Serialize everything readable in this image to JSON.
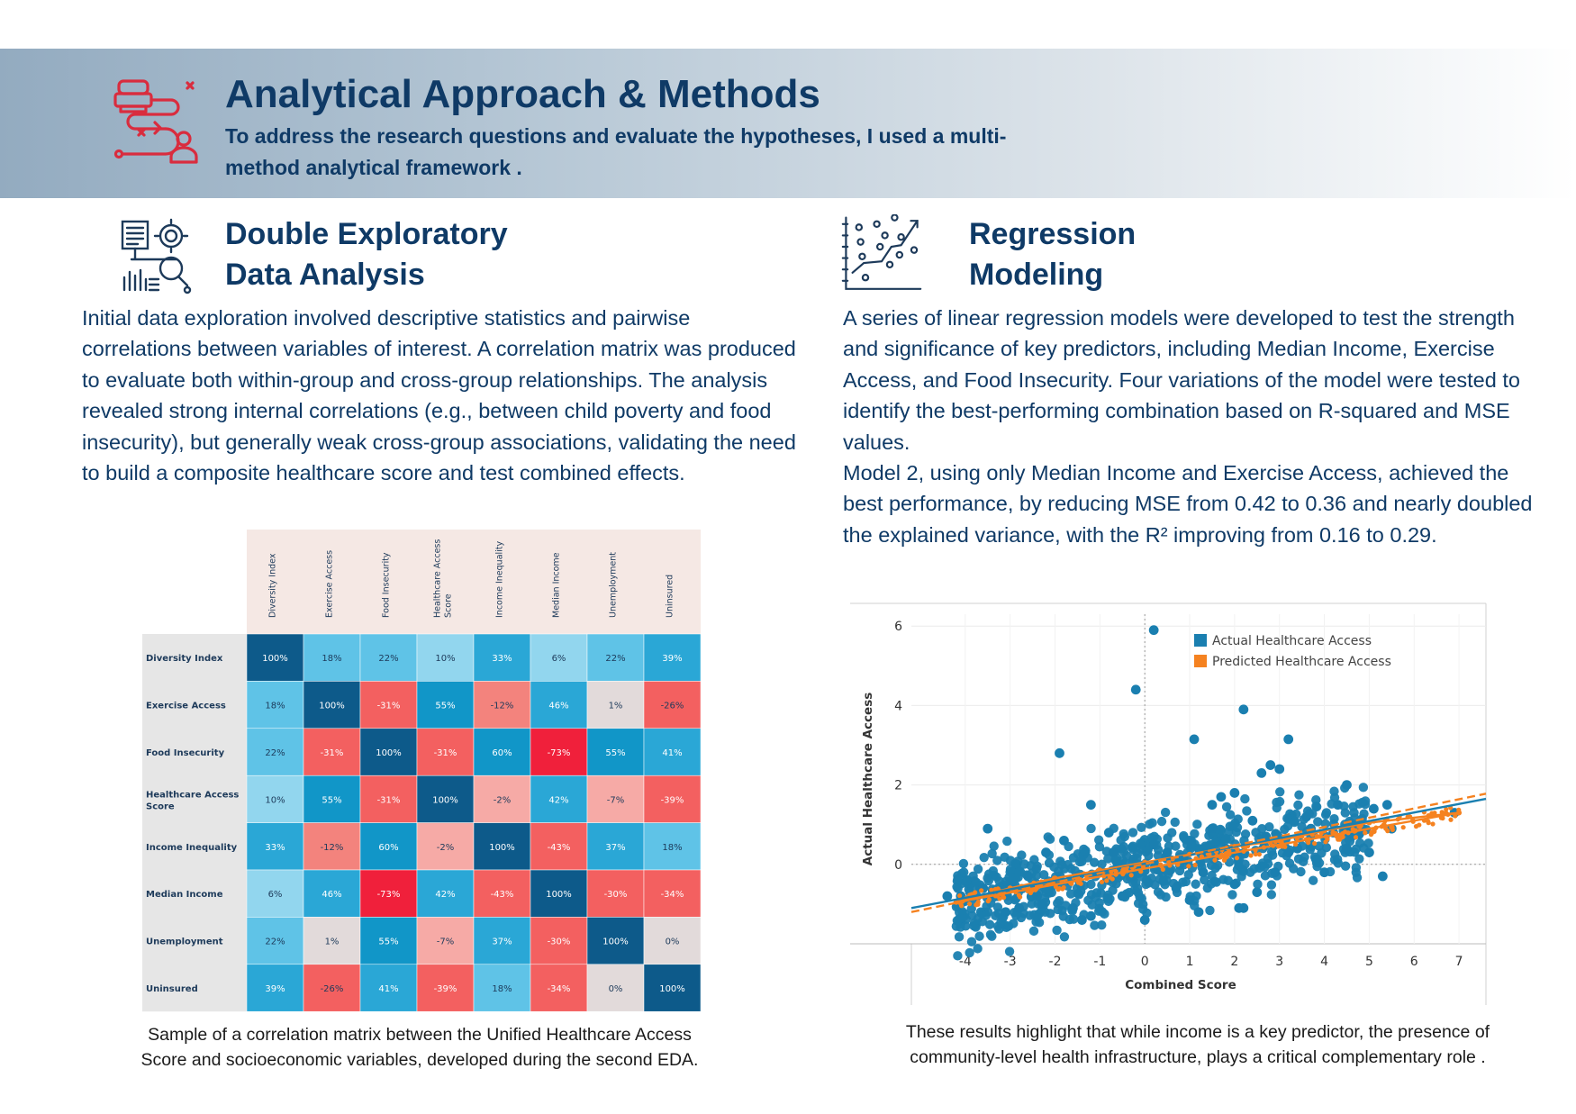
{
  "header": {
    "title": "Analytical Approach & Methods",
    "subtitle": "To address the research questions and evaluate the hypotheses, I used a multi-method analytical framework .",
    "icon": "workflow-icon"
  },
  "left_section": {
    "title_line1": "Double Exploratory",
    "title_line2": "Data Analysis",
    "icon": "data-analysis-icon",
    "body": "Initial data exploration involved descriptive statistics and pairwise correlations between variables of interest. A correlation matrix was produced to evaluate both within-group and cross-group relationships. The analysis revealed strong internal correlations (e.g., between child poverty and food insecurity), but generally weak cross-group associations, validating the need to build a composite healthcare score and test combined effects.",
    "caption_line1": "Sample of a correlation matrix between the Unified Healthcare Access",
    "caption_line2": "Score and socioeconomic variables, developed during the second EDA."
  },
  "right_section": {
    "title_line1": "Regression",
    "title_line2": "Modeling",
    "icon": "scatter-plot-icon",
    "body1": "A series of linear regression models were developed to test the strength and significance of key predictors, including Median Income, Exercise Access, and Food Insecurity. Four variations of the model were tested to identify the best-performing combination based on R-squared and MSE values.",
    "body2": "Model 2, using only Median Income and Exercise Access, achieved the best performance, by reducing MSE from 0.42 to 0.36 and nearly doubled the explained variance, with the R² improving from 0.16 to 0.29.",
    "caption_line1": "These results highlight that while income is a key predictor, the presence of",
    "caption_line2": "community-level health infrastructure, plays a critical complementary role ."
  },
  "chart_data": [
    {
      "type": "heatmap",
      "labels": [
        "Diversity Index",
        "Exercise Access",
        "Food Insecurity",
        "Healthcare Access Score",
        "Income Inequality",
        "Median Income",
        "Unemployment",
        "Uninsured"
      ],
      "col_labels": [
        [
          "Diversity Index"
        ],
        [
          "Exercise Access"
        ],
        [
          "Food Insecurity"
        ],
        [
          "Healthcare Access",
          "Score"
        ],
        [
          "Income Inequality"
        ],
        [
          "Median Income"
        ],
        [
          "Unemployment"
        ],
        [
          "Uninsured"
        ]
      ],
      "row_labels": [
        [
          "Diversity Index"
        ],
        [
          "Exercise Access"
        ],
        [
          "Food Insecurity"
        ],
        [
          "Healthcare Access",
          "Score"
        ],
        [
          "Income Inequality"
        ],
        [
          "Median Income"
        ],
        [
          "Unemployment"
        ],
        [
          "Uninsured"
        ]
      ],
      "values": [
        [
          100,
          18,
          22,
          10,
          33,
          6,
          22,
          39
        ],
        [
          18,
          100,
          -31,
          55,
          -12,
          46,
          1,
          -26
        ],
        [
          22,
          -31,
          100,
          -31,
          60,
          -73,
          55,
          41
        ],
        [
          10,
          55,
          -31,
          100,
          -2,
          42,
          -7,
          -39
        ],
        [
          33,
          -12,
          60,
          -2,
          100,
          -43,
          37,
          18
        ],
        [
          6,
          46,
          -73,
          42,
          -43,
          100,
          -30,
          -34
        ],
        [
          22,
          1,
          55,
          -7,
          37,
          -30,
          100,
          0
        ],
        [
          39,
          -26,
          41,
          -39,
          18,
          -34,
          0,
          100
        ]
      ],
      "unit": "%"
    },
    {
      "type": "scatter",
      "xlabel": "Combined Score",
      "ylabel": "Actual Healthcare Access",
      "xticks": [
        -4,
        -3,
        -2,
        -1,
        0,
        1,
        2,
        3,
        4,
        5,
        6,
        7
      ],
      "yticks": [
        0,
        2,
        4,
        6
      ],
      "xlim": [
        -5.2,
        7.6
      ],
      "ylim": [
        -2,
        6.3
      ],
      "legend_position": "top-center",
      "colors": {
        "actual": "#1a7fb0",
        "predicted": "#f58220"
      },
      "series": [
        {
          "name": "Actual Healthcare Access",
          "points": [
            [
              0.2,
              5.9
            ],
            [
              -0.2,
              4.4
            ],
            [
              2.2,
              3.9
            ],
            [
              1.1,
              3.15
            ],
            [
              3.2,
              3.15
            ],
            [
              -1.9,
              2.8
            ],
            [
              2.8,
              2.5
            ],
            [
              2.6,
              2.3
            ],
            [
              3.0,
              2.4
            ],
            [
              4.5,
              2.0
            ],
            [
              2.0,
              1.8
            ],
            [
              -1.2,
              1.5
            ],
            [
              1.5,
              1.5
            ],
            [
              1.7,
              1.7
            ],
            [
              4.3,
              1.5
            ],
            [
              -3.5,
              0.9
            ],
            [
              -1.8,
              0.6
            ],
            [
              -0.8,
              0.8
            ],
            [
              -2.2,
              0.3
            ],
            [
              0.5,
              0.3
            ],
            [
              1.0,
              0.6
            ],
            [
              1.5,
              0.9
            ],
            [
              2.4,
              1.1
            ],
            [
              3.6,
              1.2
            ],
            [
              4.2,
              0.8
            ],
            [
              4.8,
              1.1
            ],
            [
              5.1,
              1.4
            ],
            [
              5.4,
              1.5
            ],
            [
              5.5,
              0.9
            ],
            [
              4.5,
              0.4
            ],
            [
              5.0,
              0.3
            ],
            [
              5.3,
              -0.3
            ],
            [
              4.0,
              -0.2
            ],
            [
              3.2,
              0.3
            ],
            [
              2.0,
              -0.5
            ],
            [
              2.2,
              -1.1
            ],
            [
              2.1,
              -1.1
            ],
            [
              1.2,
              -1.2
            ],
            [
              0,
              -1.4
            ],
            [
              -1.4,
              -1.4
            ],
            [
              -1.2,
              -1.3
            ],
            [
              -1.6,
              -1.1
            ],
            [
              -2.3,
              -1.0
            ],
            [
              -2.8,
              -1.1
            ],
            [
              -3.1,
              -1.2
            ],
            [
              -3.6,
              -0.6
            ],
            [
              -4.1,
              -0.8
            ],
            [
              -4.4,
              -0.8
            ],
            [
              -2.6,
              -0.3
            ],
            [
              -0.5,
              -0.8
            ],
            [
              0.7,
              -0.6
            ],
            [
              1.3,
              -0.2
            ],
            [
              -1.0,
              -0.2
            ],
            [
              0.2,
              0.5
            ],
            [
              6.9,
              1.3
            ],
            [
              3.7,
              0.9
            ],
            [
              2.9,
              -0.2
            ],
            [
              -0.3,
              -0.3
            ],
            [
              -3.0,
              -0.6
            ],
            [
              -2.0,
              -0.5
            ],
            [
              -1.5,
              -0.3
            ],
            [
              0.6,
              0.1
            ],
            [
              1.8,
              0.4
            ],
            [
              2.7,
              0.7
            ],
            [
              3.4,
              0.4
            ],
            [
              -0.7,
              0.3
            ],
            [
              -2.4,
              -0.8
            ],
            [
              1.0,
              -0.9
            ],
            [
              2.5,
              -0.7
            ],
            [
              4.6,
              0.8
            ]
          ]
        },
        {
          "name": "Predicted Healthcare Access",
          "points": [
            [
              -4.2,
              -0.95
            ],
            [
              -3,
              -0.6
            ],
            [
              -2,
              -0.35
            ],
            [
              -1,
              -0.15
            ],
            [
              0,
              0.05
            ],
            [
              1,
              0.25
            ],
            [
              2,
              0.45
            ],
            [
              3,
              0.6
            ],
            [
              4,
              0.85
            ],
            [
              5,
              1.05
            ],
            [
              7,
              1.3
            ]
          ]
        }
      ],
      "trendlines": [
        {
          "x": [
            -5.2,
            7.6
          ],
          "y": [
            -1.1,
            1.65
          ],
          "style": "solid",
          "color": "#1a7fb0"
        },
        {
          "x": [
            -5.2,
            7.6
          ],
          "y": [
            -1.2,
            1.78
          ],
          "style": "dashed",
          "color": "#f58220"
        },
        {
          "x": [
            -4.2,
            7.0
          ],
          "y": [
            -0.95,
            1.3
          ],
          "style": "solid",
          "color": "#f58220"
        }
      ]
    }
  ]
}
